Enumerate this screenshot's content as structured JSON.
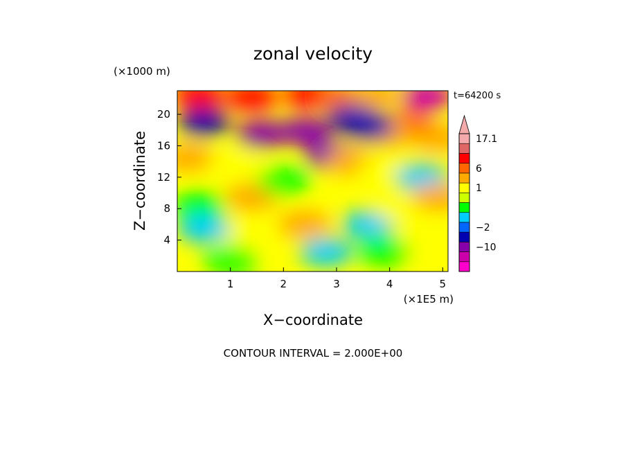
{
  "chart_data": {
    "type": "heatmap",
    "title": "zonal velocity",
    "xlabel": "X−coordinate",
    "ylabel": "Z−coordinate",
    "x_unit_label": "(×1E5 m)",
    "y_unit_label": "(×1000 m)",
    "x_ticks": [
      "1",
      "2",
      "3",
      "4",
      "5"
    ],
    "x_tick_values": [
      1,
      2,
      3,
      4,
      5
    ],
    "y_ticks": [
      "4",
      "8",
      "12",
      "16",
      "20"
    ],
    "y_tick_values": [
      4,
      8,
      12,
      16,
      20
    ],
    "xlim": [
      0,
      5.1
    ],
    "ylim": [
      0,
      23
    ],
    "time_label": "t=64200 s",
    "contour_interval_text": "CONTOUR INTERVAL = 2.000E+00",
    "colorbar": {
      "labels": [
        {
          "text": "17.1",
          "value": 17.1
        },
        {
          "text": "6",
          "value": 6
        },
        {
          "text": "1",
          "value": 1
        },
        {
          "text": "−2",
          "value": -2
        },
        {
          "text": "−10",
          "value": -10
        }
      ],
      "levels": [
        {
          "value": -16,
          "color": "#ff00cc"
        },
        {
          "value": -12,
          "color": "#cc00aa"
        },
        {
          "value": -10,
          "color": "#8800aa"
        },
        {
          "value": -6,
          "color": "#0000b0"
        },
        {
          "value": -2,
          "color": "#0066ff"
        },
        {
          "value": -1,
          "color": "#00ccff"
        },
        {
          "value": 0,
          "color": "#00ff00"
        },
        {
          "value": 0.5,
          "color": "#ccff00"
        },
        {
          "value": 1,
          "color": "#ffff00"
        },
        {
          "value": 3,
          "color": "#ffaa00"
        },
        {
          "value": 6,
          "color": "#ff6600"
        },
        {
          "value": 8,
          "color": "#ff0000"
        },
        {
          "value": 12,
          "color": "#e06666"
        },
        {
          "value": 17.1,
          "color": "#f4aaaa"
        }
      ]
    },
    "field_regions": [
      {
        "x": 0.4,
        "z": 22.5,
        "value": 9
      },
      {
        "x": 1.4,
        "z": 22.2,
        "value": 8
      },
      {
        "x": 2.5,
        "z": 22.5,
        "value": 10
      },
      {
        "x": 3.2,
        "z": 22.3,
        "value": 7
      },
      {
        "x": 3.7,
        "z": 22.4,
        "value": 4
      },
      {
        "x": 4.7,
        "z": 22.3,
        "value": -11
      },
      {
        "x": 4.4,
        "z": 18.5,
        "value": 9
      },
      {
        "x": 4.0,
        "z": 17.5,
        "value": 5
      },
      {
        "x": 4.9,
        "z": 17.0,
        "value": 3
      },
      {
        "x": 1.6,
        "z": 17.5,
        "value": -7
      },
      {
        "x": 2.4,
        "z": 17.8,
        "value": -7
      },
      {
        "x": 2.9,
        "z": 14.8,
        "value": -7
      },
      {
        "x": 0.5,
        "z": 19.0,
        "value": -4
      },
      {
        "x": 3.3,
        "z": 19.5,
        "value": -3
      },
      {
        "x": 3.6,
        "z": 18.5,
        "value": -3
      },
      {
        "x": 0.2,
        "z": 14.5,
        "value": 4
      },
      {
        "x": 1.1,
        "z": 13.5,
        "value": 1
      },
      {
        "x": 1.4,
        "z": 9.5,
        "value": 5
      },
      {
        "x": 3.3,
        "z": 14.0,
        "value": 5
      },
      {
        "x": 3.9,
        "z": 13.0,
        "value": 1
      },
      {
        "x": 4.6,
        "z": 12.0,
        "value": -0.5
      },
      {
        "x": 2.0,
        "z": 11.5,
        "value": 0
      },
      {
        "x": 0.4,
        "z": 8.5,
        "value": 0
      },
      {
        "x": 2.4,
        "z": 6.0,
        "value": 4
      },
      {
        "x": 1.2,
        "z": 5.0,
        "value": 1
      },
      {
        "x": 0.5,
        "z": 5.5,
        "value": -1
      },
      {
        "x": 3.6,
        "z": 6.0,
        "value": -1
      },
      {
        "x": 4.2,
        "z": 8.0,
        "value": 1
      },
      {
        "x": 4.7,
        "z": 4.0,
        "value": 2
      },
      {
        "x": 2.8,
        "z": 2.5,
        "value": -1
      },
      {
        "x": 3.9,
        "z": 2.5,
        "value": 0
      },
      {
        "x": 1.0,
        "z": 1.5,
        "value": 0
      },
      {
        "x": 4.9,
        "z": 9.5,
        "value": 3
      }
    ]
  }
}
